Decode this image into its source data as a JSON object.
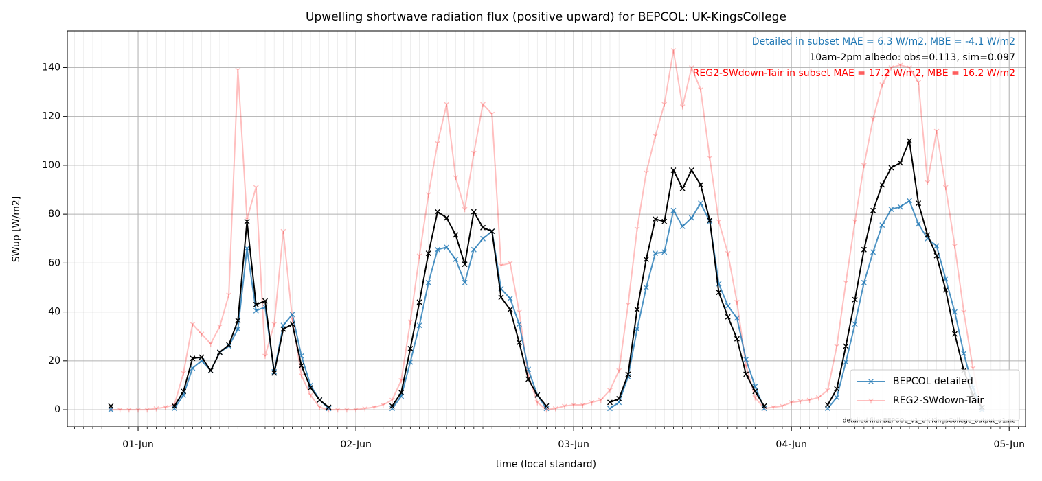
{
  "chart_data": {
    "type": "line",
    "title": "Upwelling shortwave radiation flux (positive upward) for BEPCOL: UK-KingsCollege",
    "xlabel": "time (local standard)",
    "ylabel": "SWup [W/m2]",
    "x": [
      -3,
      -2,
      -1,
      0,
      1,
      2,
      3,
      4,
      5,
      6,
      7,
      8,
      9,
      10,
      11,
      12,
      13,
      14,
      15,
      16,
      17,
      18,
      19,
      20,
      21,
      22,
      23,
      24,
      25,
      26,
      27,
      28,
      29,
      30,
      31,
      32,
      33,
      34,
      35,
      36,
      37,
      38,
      39,
      40,
      41,
      42,
      43,
      44,
      45,
      46,
      47,
      48,
      49,
      50,
      51,
      52,
      53,
      54,
      55,
      56,
      57,
      58,
      59,
      60,
      61,
      62,
      63,
      64,
      65,
      66,
      67,
      68,
      69,
      70,
      71,
      72,
      73,
      74,
      75,
      76,
      77,
      78,
      79,
      80,
      81,
      82,
      83,
      84,
      85,
      86,
      87,
      88,
      89,
      90,
      91,
      92,
      93
    ],
    "xlim": [
      -7.8,
      97.8
    ],
    "xticks": [
      {
        "value": 0,
        "label": "01-Jun"
      },
      {
        "value": 24,
        "label": "02-Jun"
      },
      {
        "value": 48,
        "label": "03-Jun"
      },
      {
        "value": 72,
        "label": "04-Jun"
      },
      {
        "value": 96,
        "label": "05-Jun"
      }
    ],
    "xminor_divisions": 24,
    "ylim": [
      -7,
      155
    ],
    "yticks": [
      0,
      20,
      40,
      60,
      80,
      100,
      120,
      140
    ],
    "grid": true,
    "legend": "lower right",
    "series": [
      {
        "name": "REG2-SWdown-Tair",
        "color": "#ff0000",
        "alpha": 0.25,
        "marker": "tri",
        "values": [
          0,
          0,
          0,
          0,
          0,
          0.5,
          1,
          2,
          15,
          35,
          31,
          27,
          34,
          47,
          139,
          78,
          91,
          22,
          35,
          73,
          37,
          14,
          6,
          1,
          0,
          0,
          0,
          0,
          0.5,
          1,
          2,
          4,
          12,
          36,
          63,
          88,
          109,
          125,
          95,
          82,
          105,
          125,
          121,
          59,
          60,
          40,
          14,
          3,
          0,
          0.5,
          1.5,
          2,
          2,
          3,
          4,
          8,
          16,
          43,
          74,
          97,
          112,
          125,
          147,
          124,
          140,
          131,
          103,
          77,
          64,
          44,
          18,
          5,
          0.5,
          1,
          1.5,
          3,
          3.5,
          4,
          5,
          8,
          26,
          52,
          77,
          100,
          119,
          133,
          140,
          141,
          140,
          134,
          93,
          114,
          91,
          67,
          40,
          17,
          0
        ]
      },
      {
        "name": "BEPCOL detailed",
        "color": "#1f77b4",
        "alpha": 0.8,
        "marker": "x",
        "values": [
          0,
          null,
          null,
          null,
          null,
          null,
          null,
          0.5,
          6,
          17,
          20,
          16,
          23.5,
          26,
          33,
          66,
          40.5,
          42,
          15.5,
          34.5,
          39,
          22,
          10,
          4,
          0.5,
          null,
          null,
          null,
          null,
          null,
          null,
          0.5,
          5.5,
          19.5,
          34.5,
          52,
          65.5,
          66.5,
          61.5,
          52,
          65.5,
          70,
          73,
          49.5,
          45.5,
          35,
          16.5,
          6,
          0.5,
          null,
          null,
          null,
          null,
          null,
          null,
          0.5,
          3,
          13.5,
          33,
          50,
          64,
          64.5,
          81.5,
          75,
          78.5,
          84.5,
          77,
          51.5,
          42.5,
          37.5,
          20.5,
          9.5,
          0.5,
          null,
          null,
          null,
          null,
          null,
          null,
          0.5,
          5,
          19.5,
          35,
          52,
          64.5,
          75.5,
          82,
          83,
          85.5,
          76,
          70,
          67,
          53.5,
          40,
          23,
          9,
          0
        ]
      },
      {
        "color": "#000000",
        "alpha": 1,
        "marker": "x",
        "values": [
          1.5,
          null,
          null,
          null,
          null,
          null,
          null,
          1.5,
          7.5,
          21,
          21.5,
          16,
          23.5,
          26.5,
          36.5,
          77,
          43,
          44.5,
          15,
          33,
          35,
          18,
          9,
          4,
          1,
          null,
          null,
          null,
          null,
          null,
          null,
          1.5,
          7,
          25,
          44,
          64,
          81,
          78.5,
          71.5,
          59.5,
          81,
          74.5,
          73,
          46,
          41,
          27.5,
          12.5,
          6,
          1.5,
          null,
          null,
          null,
          null,
          null,
          null,
          3,
          4.5,
          14.5,
          41,
          61.5,
          78,
          77,
          98,
          90.5,
          98,
          92,
          77.5,
          48,
          38,
          29,
          14.5,
          7.5,
          1.5,
          null,
          null,
          null,
          null,
          null,
          null,
          2,
          8.5,
          26,
          45,
          65.5,
          81.5,
          92,
          99,
          101,
          110,
          84.5,
          71.5,
          63,
          49,
          31,
          16,
          6,
          1
        ]
      }
    ],
    "annotations": [
      {
        "text": "Detailed in subset MAE = 6.3 W/m2, MBE = -4.1 W/m2",
        "color": "#1f77b4"
      },
      {
        "text": "10am-2pm albedo: obs=0.113, sim=0.097",
        "color": "#000000"
      },
      {
        "text": "REG2-SWdown-Tair in subset MAE = 17.2 W/m2, MBE = 16.2 W/m2",
        "color": "#ff0000"
      }
    ],
    "footnote": "detailed file: BEPCOL_v1_UK-KingsCollege_output_d1.nc"
  }
}
